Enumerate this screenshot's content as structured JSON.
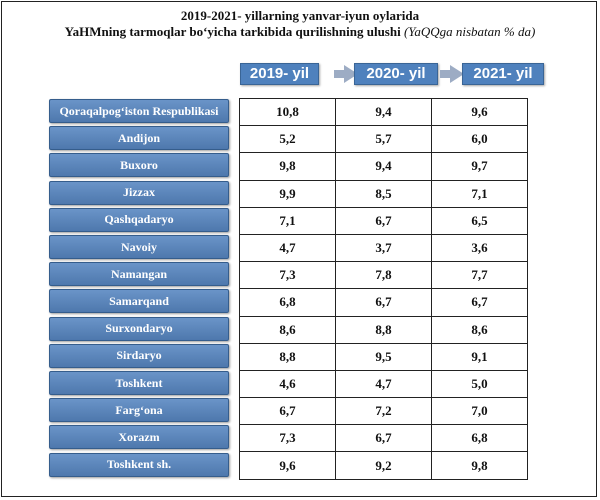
{
  "chart_data": {
    "type": "table",
    "title_line1": "2019-2021- yillarning yanvar-iyun oylarida",
    "title_line2_main": "YaHMning tarmoqlar bo‘yicha tarkibida qurilishning ulushi",
    "title_line2_unit": "(YaQQga nisbatan % da)",
    "columns": [
      "2019- yil",
      "2020- yil",
      "2021- yil"
    ],
    "rows": [
      {
        "region": "Qoraqalpog‘iston Respublikasi",
        "values": [
          "10,8",
          "9,4",
          "9,6"
        ]
      },
      {
        "region": "Andijon",
        "values": [
          "5,2",
          "5,7",
          "6,0"
        ]
      },
      {
        "region": "Buxoro",
        "values": [
          "9,8",
          "9,4",
          "9,7"
        ]
      },
      {
        "region": "Jizzax",
        "values": [
          "9,9",
          "8,5",
          "7,1"
        ]
      },
      {
        "region": "Qashqadaryo",
        "values": [
          "7,1",
          "6,7",
          "6,5"
        ]
      },
      {
        "region": "Navoiy",
        "values": [
          "4,7",
          "3,7",
          "3,6"
        ]
      },
      {
        "region": "Namangan",
        "values": [
          "7,3",
          "7,8",
          "7,7"
        ]
      },
      {
        "region": "Samarqand",
        "values": [
          "6,8",
          "6,7",
          "6,7"
        ]
      },
      {
        "region": "Surxondaryo",
        "values": [
          "8,6",
          "8,8",
          "8,6"
        ]
      },
      {
        "region": "Sirdaryo",
        "values": [
          "8,8",
          "9,5",
          "9,1"
        ]
      },
      {
        "region": "Toshkent",
        "values": [
          "4,6",
          "4,7",
          "5,0"
        ]
      },
      {
        "region": "Farg‘ona",
        "values": [
          "6,7",
          "7,2",
          "7,0"
        ]
      },
      {
        "region": "Xorazm",
        "values": [
          "7,3",
          "6,7",
          "6,8"
        ]
      },
      {
        "region": "Toshkent sh.",
        "values": [
          "9,6",
          "9,2",
          "9,8"
        ]
      }
    ]
  },
  "colors": {
    "header_blue": "#4f81bd",
    "region_blue": "#5b86bb",
    "arrow_gray": "#9dacc4"
  }
}
